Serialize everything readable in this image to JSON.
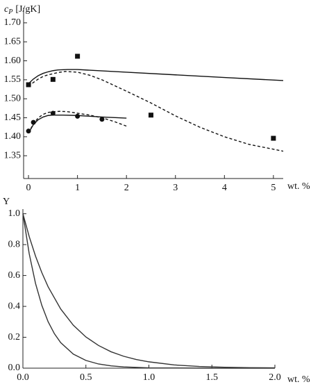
{
  "chart_data": [
    {
      "type": "line",
      "y_label": {
        "symbol": "c",
        "subscript": "P",
        "unit": "[J/gK]"
      },
      "x_label": "wt. %",
      "xlim": [
        -0.1,
        5.2
      ],
      "xticks": [
        0,
        1,
        2,
        3,
        4,
        5
      ],
      "ylim": [
        1.29,
        1.74
      ],
      "yticks": [
        1.35,
        {
          "value": 1.4,
          "label": "1.40"
        },
        1.45,
        {
          "value": 1.5,
          "label": "1.50"
        },
        1.55,
        {
          "value": 1.6,
          "label": "1.60"
        },
        1.65,
        {
          "value": 1.7,
          "label": "1.70"
        }
      ],
      "color": "#111111",
      "series": [
        {
          "mode": "markers",
          "marker": "square",
          "x": [
            0,
            0.5,
            1,
            2.5,
            5
          ],
          "values": [
            1.537,
            1.551,
            1.612,
            1.457,
            1.396
          ]
        },
        {
          "mode": "markers",
          "marker": "circle",
          "x": [
            0,
            0.1,
            0.5,
            1,
            1.5
          ],
          "values": [
            1.415,
            1.438,
            1.462,
            1.454,
            1.446
          ]
        },
        {
          "mode": "line",
          "dash": "solid",
          "x": [
            0,
            0.1,
            0.2,
            0.3,
            0.4,
            0.5,
            0.6,
            0.8,
            1,
            2,
            3,
            4,
            5.2
          ],
          "values": [
            1.54,
            1.552,
            1.561,
            1.567,
            1.571,
            1.574,
            1.576,
            1.577,
            1.577,
            1.57,
            1.563,
            1.556,
            1.548
          ]
        },
        {
          "mode": "line",
          "dash": "dashed",
          "x": [
            0,
            0.1,
            0.2,
            0.3,
            0.4,
            0.5,
            0.6,
            0.75,
            1,
            1.25,
            1.5,
            2,
            2.5,
            3,
            3.5,
            4,
            4.5,
            5.2
          ],
          "values": [
            1.533,
            1.543,
            1.552,
            1.559,
            1.563,
            1.566,
            1.569,
            1.572,
            1.57,
            1.562,
            1.55,
            1.52,
            1.489,
            1.455,
            1.425,
            1.4,
            1.38,
            1.362
          ]
        },
        {
          "mode": "line",
          "dash": "solid",
          "x": [
            0,
            0.1,
            0.2,
            0.3,
            0.4,
            0.5,
            0.7,
            1,
            1.5,
            2
          ],
          "values": [
            1.41,
            1.432,
            1.445,
            1.452,
            1.456,
            1.457,
            1.457,
            1.456,
            1.452,
            1.449
          ]
        },
        {
          "mode": "line",
          "dash": "dashed",
          "x": [
            0,
            0.1,
            0.2,
            0.3,
            0.4,
            0.5,
            0.65,
            0.8,
            1,
            1.25,
            1.5,
            1.75,
            2
          ],
          "values": [
            1.41,
            1.434,
            1.45,
            1.459,
            1.464,
            1.466,
            1.467,
            1.466,
            1.462,
            1.457,
            1.45,
            1.44,
            1.428
          ]
        }
      ]
    },
    {
      "type": "line",
      "y_label": "Y",
      "x_label": "wt. %",
      "xlim": [
        0,
        2.0
      ],
      "xticks": [
        {
          "value": 0,
          "label": "0.0"
        },
        0.5,
        {
          "value": 1,
          "label": "1.0"
        },
        1.5,
        {
          "value": 2,
          "label": "2.0"
        }
      ],
      "ylim": [
        0,
        1.03
      ],
      "yticks": [
        {
          "value": 0,
          "label": "0.0"
        },
        0.2,
        0.4,
        0.6,
        0.8,
        {
          "value": 1,
          "label": "1.0"
        }
      ],
      "color": "#333333",
      "series": [
        {
          "mode": "line",
          "dash": "solid",
          "x": [
            0,
            0.05,
            0.1,
            0.15,
            0.2,
            0.3,
            0.4,
            0.5,
            0.6,
            0.7,
            0.8,
            0.9,
            1.0,
            1.2,
            1.4,
            1.6,
            1.8,
            2.0
          ],
          "values": [
            1,
            0.852,
            0.726,
            0.619,
            0.527,
            0.383,
            0.278,
            0.202,
            0.147,
            0.106,
            0.077,
            0.056,
            0.041,
            0.021,
            0.011,
            0.006,
            0.003,
            0.002
          ]
        },
        {
          "mode": "line",
          "dash": "solid",
          "x": [
            0,
            0.05,
            0.1,
            0.15,
            0.2,
            0.25,
            0.3,
            0.4,
            0.5,
            0.6,
            0.7,
            0.8,
            1.0,
            1.5,
            2.0
          ],
          "values": [
            1,
            0.741,
            0.549,
            0.407,
            0.301,
            0.223,
            0.165,
            0.091,
            0.05,
            0.027,
            0.015,
            0.008,
            0.002,
            0,
            0
          ]
        }
      ]
    }
  ]
}
